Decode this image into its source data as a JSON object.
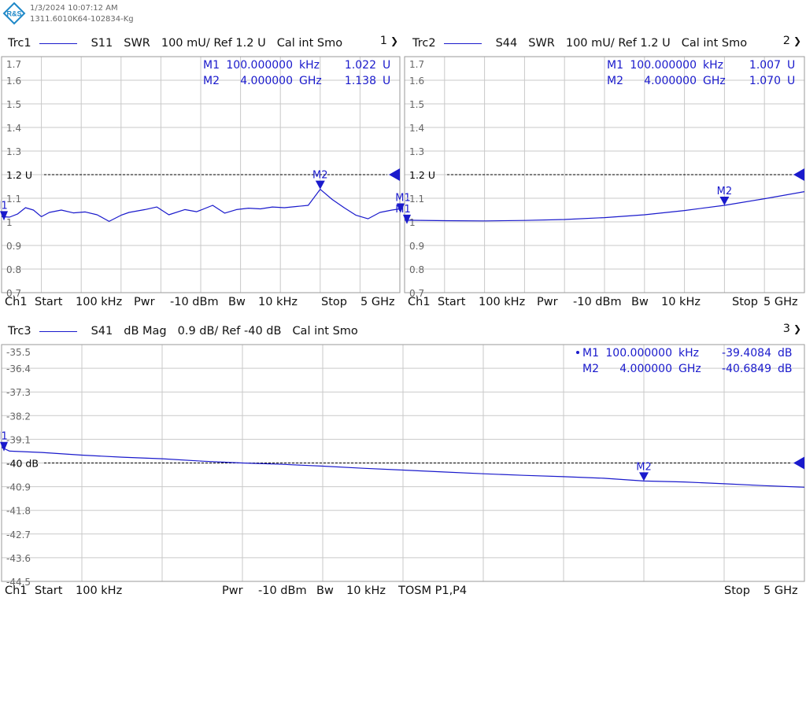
{
  "header": {
    "datetime": "1/3/2024 10:07:12 AM",
    "device_id": "1311.6010K64-102834-Kg",
    "logo_letters": "R&S"
  },
  "colors": {
    "trace": "#1a1acc",
    "marker_text": "#1a1acc",
    "grid": "#c9c9c9",
    "frame": "#9a9a9a",
    "ref_line": "#000000"
  },
  "panels": [
    {
      "trace_name": "Trc1",
      "parameter": "S11",
      "format": "SWR",
      "scale": "100 mU/ Ref 1.2 U",
      "cal": "Cal int Smo",
      "window_number": "1",
      "chevron_icon": "chevron-down-icon",
      "markers": [
        {
          "name": "M1",
          "freq_value": "100.000000",
          "freq_unit": "kHz",
          "value": "1.022",
          "unit": "U"
        },
        {
          "name": "M2",
          "freq_value": "4.000000",
          "freq_unit": "GHz",
          "value": "1.138",
          "unit": "U"
        }
      ],
      "channel": {
        "ch": "Ch1",
        "start_label": "Start",
        "start_value": "100 kHz",
        "pwr_label": "Pwr",
        "pwr_value": "-10 dBm",
        "bw_label": "Bw",
        "bw_value": "10 kHz",
        "stop_label": "Stop",
        "stop_value": "5 GHz"
      }
    },
    {
      "trace_name": "Trc2",
      "parameter": "S44",
      "format": "SWR",
      "scale": "100 mU/ Ref 1.2 U",
      "cal": "Cal int Smo",
      "window_number": "2",
      "chevron_icon": "chevron-down-icon",
      "markers": [
        {
          "name": "M1",
          "freq_value": "100.000000",
          "freq_unit": "kHz",
          "value": "1.007",
          "unit": "U"
        },
        {
          "name": "M2",
          "freq_value": "4.000000",
          "freq_unit": "GHz",
          "value": "1.070",
          "unit": "U"
        }
      ],
      "channel": {
        "ch": "Ch1",
        "start_label": "Start",
        "start_value": "100 kHz",
        "pwr_label": "Pwr",
        "pwr_value": "-10 dBm",
        "bw_label": "Bw",
        "bw_value": "10 kHz",
        "stop_label": "Stop",
        "stop_value": "5 GHz"
      }
    },
    {
      "trace_name": "Trc3",
      "parameter": "S41",
      "format": "dB Mag",
      "scale": "0.9 dB/ Ref -40 dB",
      "cal": "Cal int Smo",
      "window_number": "3",
      "chevron_icon": "chevron-down-icon",
      "markers": [
        {
          "name": "M1",
          "freq_value": "100.000000",
          "freq_unit": "kHz",
          "value": "-39.4084",
          "unit": "dB",
          "active": true
        },
        {
          "name": "M2",
          "freq_value": "4.000000",
          "freq_unit": "GHz",
          "value": "-40.6849",
          "unit": "dB"
        }
      ],
      "channel": {
        "ch": "Ch1",
        "start_label": "Start",
        "start_value": "100 kHz",
        "pwr_label": "Pwr",
        "pwr_value": "-10 dBm",
        "bw_label": "Bw",
        "bw_value": "10 kHz",
        "cal_kit": "TOSM P1,P4",
        "stop_label": "Stop",
        "stop_value": "5 GHz"
      }
    }
  ],
  "chart_data": [
    {
      "type": "line",
      "title": "Trc1 S11 SWR",
      "x_range_hz": [
        100000,
        5000000000
      ],
      "ylim": [
        0.7,
        1.7
      ],
      "yticks": [
        "1.7",
        "1.6",
        "1.5",
        "1.4",
        "1.3",
        "1.2 U",
        "1.1",
        "1",
        "0.9",
        "0.8",
        "0.7"
      ],
      "ref_value": 1.2,
      "grid": true,
      "series": [
        {
          "x_ghz": [
            0,
            0.1,
            0.2,
            0.3,
            0.4,
            0.5,
            0.6,
            0.75,
            0.9,
            1.05,
            1.2,
            1.35,
            1.5,
            1.6,
            1.8,
            1.95,
            2.1,
            2.3,
            2.45,
            2.65,
            2.8,
            2.95,
            3.1,
            3.25,
            3.4,
            3.55,
            3.7,
            3.85,
            4.0,
            4.15,
            4.3,
            4.45,
            4.6,
            4.75,
            4.9,
            5.0
          ],
          "y": [
            1.022,
            1.02,
            1.033,
            1.06,
            1.05,
            1.022,
            1.04,
            1.05,
            1.038,
            1.042,
            1.03,
            1.002,
            1.028,
            1.04,
            1.052,
            1.063,
            1.03,
            1.052,
            1.043,
            1.07,
            1.037,
            1.052,
            1.058,
            1.055,
            1.063,
            1.06,
            1.065,
            1.07,
            1.138,
            1.095,
            1.06,
            1.028,
            1.013,
            1.04,
            1.05,
            1.055
          ]
        }
      ],
      "markers": [
        {
          "name": "M1",
          "x_ghz": 0.0001,
          "y": 1.022
        },
        {
          "name": "M2",
          "x_ghz": 4.0,
          "y": 1.138
        }
      ]
    },
    {
      "type": "line",
      "title": "Trc2 S44 SWR",
      "x_range_hz": [
        100000,
        5000000000
      ],
      "ylim": [
        0.7,
        1.7
      ],
      "yticks": [
        "1.7",
        "1.6",
        "1.5",
        "1.4",
        "1.3",
        "1.2 U",
        "1.1",
        "1",
        "0.9",
        "0.8",
        "0.7"
      ],
      "ref_value": 1.2,
      "grid": true,
      "series": [
        {
          "x_ghz": [
            0,
            0.5,
            1.0,
            1.5,
            2.0,
            2.5,
            3.0,
            3.5,
            4.0,
            4.5,
            5.0
          ],
          "y": [
            1.007,
            1.005,
            1.004,
            1.006,
            1.01,
            1.018,
            1.03,
            1.048,
            1.07,
            1.098,
            1.128
          ]
        }
      ],
      "markers": [
        {
          "name": "M1",
          "x_ghz": 0.0001,
          "y": 1.007
        },
        {
          "name": "M2",
          "x_ghz": 4.0,
          "y": 1.07
        }
      ]
    },
    {
      "type": "line",
      "title": "Trc3 S41 dB Mag",
      "x_range_hz": [
        100000,
        5000000000
      ],
      "ylim": [
        -44.5,
        -35.5
      ],
      "yticks": [
        "-35.5",
        "-36.4",
        "-37.3",
        "-38.2",
        "-39.1",
        "-40 dB",
        "-40.9",
        "-41.8",
        "-42.7",
        "-43.6",
        "-44.5"
      ],
      "ref_value": -40,
      "grid": true,
      "series": [
        {
          "x_ghz": [
            0,
            0.05,
            0.25,
            0.5,
            0.75,
            1.0,
            1.25,
            1.5,
            1.75,
            2.0,
            2.25,
            2.5,
            2.75,
            3.0,
            3.25,
            3.5,
            3.75,
            4.0,
            4.25,
            4.5,
            4.75,
            5.0
          ],
          "y": [
            -39.408,
            -39.55,
            -39.6,
            -39.7,
            -39.78,
            -39.84,
            -39.93,
            -40.0,
            -40.05,
            -40.12,
            -40.2,
            -40.27,
            -40.34,
            -40.41,
            -40.47,
            -40.52,
            -40.58,
            -40.685,
            -40.72,
            -40.79,
            -40.86,
            -40.92
          ]
        }
      ],
      "markers": [
        {
          "name": "M1",
          "x_ghz": 0.0001,
          "y": -39.408
        },
        {
          "name": "M2",
          "x_ghz": 4.0,
          "y": -40.685
        }
      ]
    }
  ]
}
